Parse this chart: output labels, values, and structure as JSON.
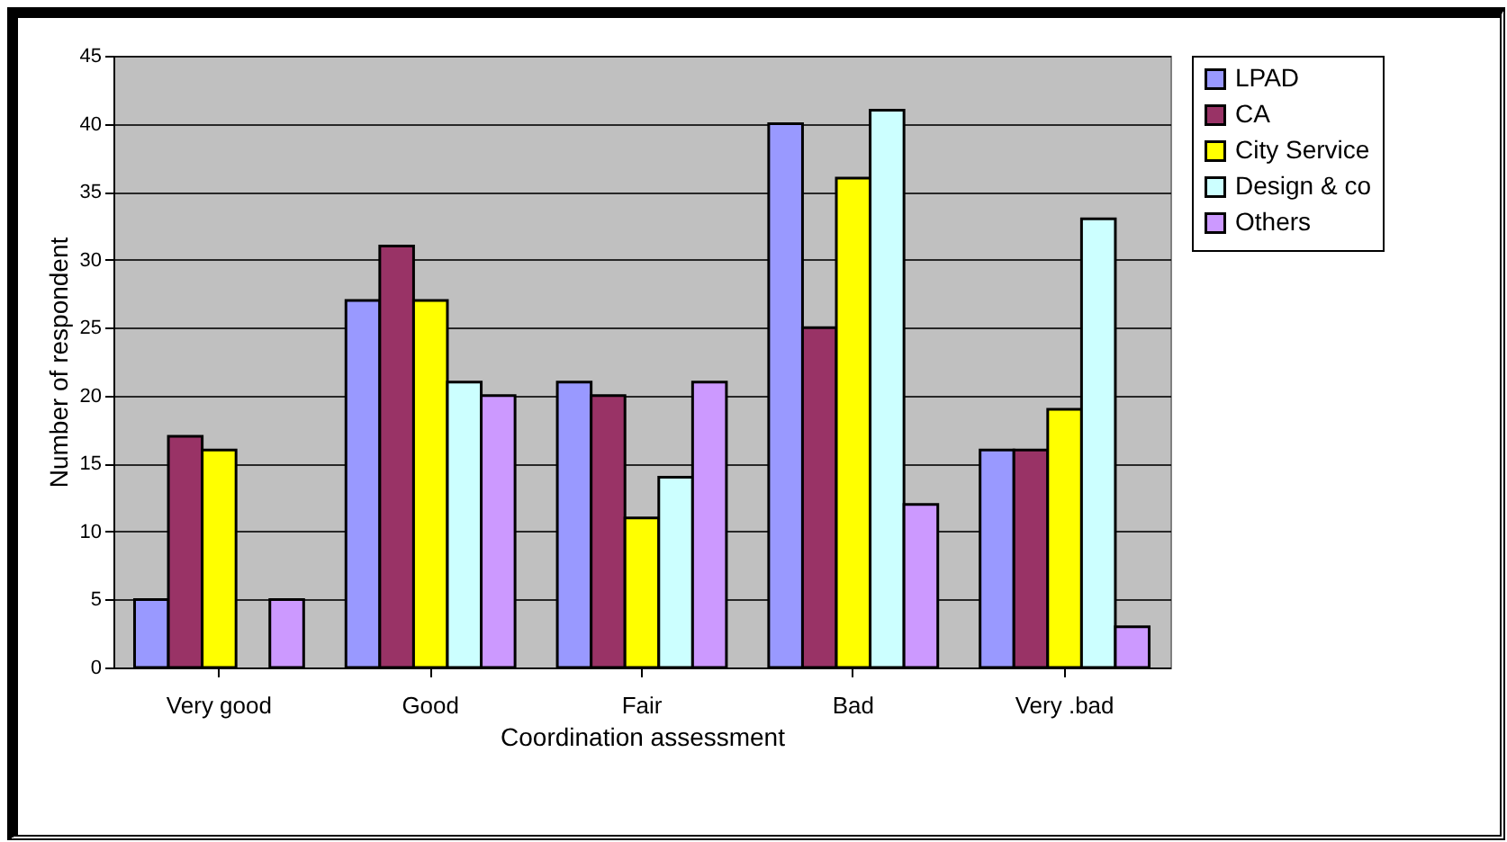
{
  "chart_data": {
    "type": "bar",
    "xlabel": "Coordination assessment",
    "ylabel": "Number of respondent",
    "categories": [
      "Very good",
      "Good",
      "Fair",
      "Bad",
      "Very .bad"
    ],
    "series": [
      {
        "name": "LPAD",
        "color": "#9999ff",
        "values": [
          5,
          27,
          21,
          40,
          16
        ]
      },
      {
        "name": "CA",
        "color": "#993366",
        "values": [
          17,
          31,
          20,
          25,
          16
        ]
      },
      {
        "name": "City Service",
        "color": "#ffff00",
        "values": [
          16,
          27,
          11,
          36,
          19
        ]
      },
      {
        "name": "Design & co",
        "color": "#ccffff",
        "values": [
          null,
          21,
          14,
          41,
          33
        ]
      },
      {
        "name": "Others",
        "color": "#cc99ff",
        "values": [
          5,
          20,
          21,
          12,
          3
        ]
      }
    ],
    "ylim": [
      0,
      45
    ],
    "yticks": [
      0,
      5,
      10,
      15,
      20,
      25,
      30,
      35,
      40,
      45
    ],
    "grid": "y",
    "legend": "right"
  }
}
